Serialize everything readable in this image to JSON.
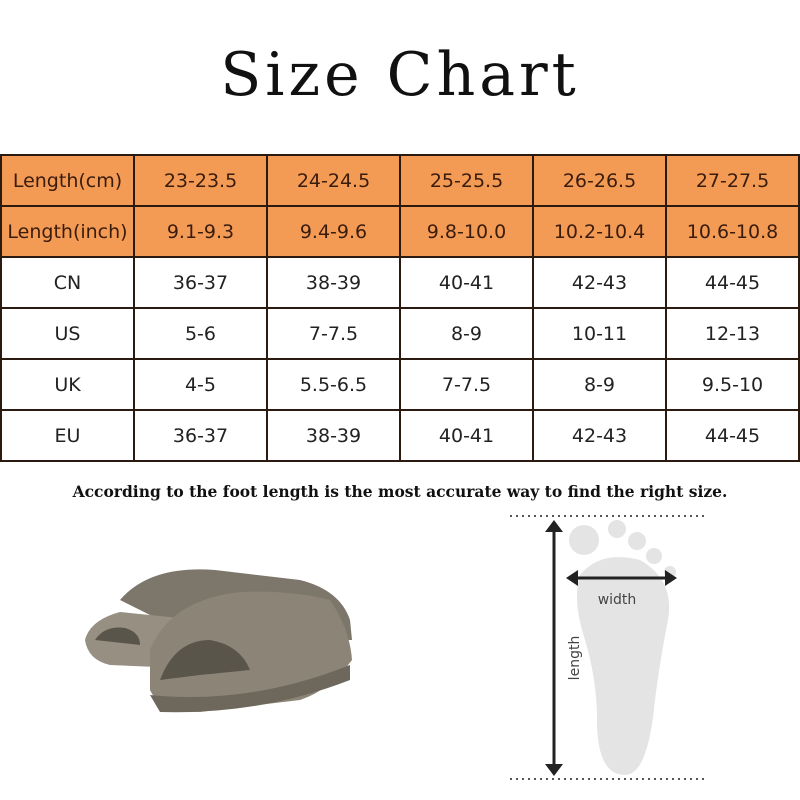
{
  "title": "Size Chart",
  "table": {
    "rows": [
      {
        "label": "Length(cm)",
        "values": [
          "23-23.5",
          "24-24.5",
          "25-25.5",
          "26-26.5",
          "27-27.5"
        ],
        "highlight": true
      },
      {
        "label": "Length(inch)",
        "values": [
          "9.1-9.3",
          "9.4-9.6",
          "9.8-10.0",
          "10.2-10.4",
          "10.6-10.8"
        ],
        "highlight": true
      },
      {
        "label": "CN",
        "values": [
          "36-37",
          "38-39",
          "40-41",
          "42-43",
          "44-45"
        ]
      },
      {
        "label": "US",
        "values": [
          "5-6",
          "7-7.5",
          "8-9",
          "10-11",
          "12-13"
        ]
      },
      {
        "label": "UK",
        "values": [
          "4-5",
          "5.5-6.5",
          "7-7.5",
          "8-9",
          "9.5-10"
        ]
      },
      {
        "label": "EU",
        "values": [
          "36-37",
          "38-39",
          "40-41",
          "42-43",
          "44-45"
        ]
      }
    ]
  },
  "note": "According to the foot length is the most  accurate way to find the right size.",
  "diagram": {
    "width_label": "width",
    "length_label": "length"
  },
  "colors": {
    "header": "#f39a55",
    "slipper": "#8c8577"
  }
}
